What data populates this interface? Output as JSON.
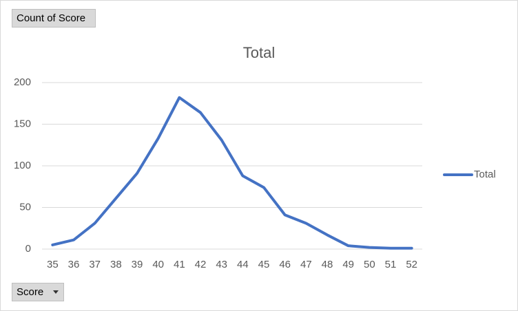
{
  "value_field_button": "Count of Score",
  "axis_field_button": "Score",
  "chart_data": {
    "type": "line",
    "title": "Total",
    "categories": [
      "35",
      "36",
      "37",
      "38",
      "39",
      "40",
      "41",
      "42",
      "43",
      "44",
      "45",
      "46",
      "47",
      "48",
      "49",
      "50",
      "51",
      "52"
    ],
    "series": [
      {
        "name": "Total",
        "color": "#4472c4",
        "values": [
          5,
          11,
          31,
          61,
          91,
          133,
          182,
          164,
          131,
          88,
          74,
          41,
          31,
          17,
          4,
          2,
          1,
          1
        ]
      }
    ],
    "ylim": [
      0,
      200
    ],
    "yticks": [
      0,
      50,
      100,
      150,
      200
    ],
    "grid": true
  }
}
